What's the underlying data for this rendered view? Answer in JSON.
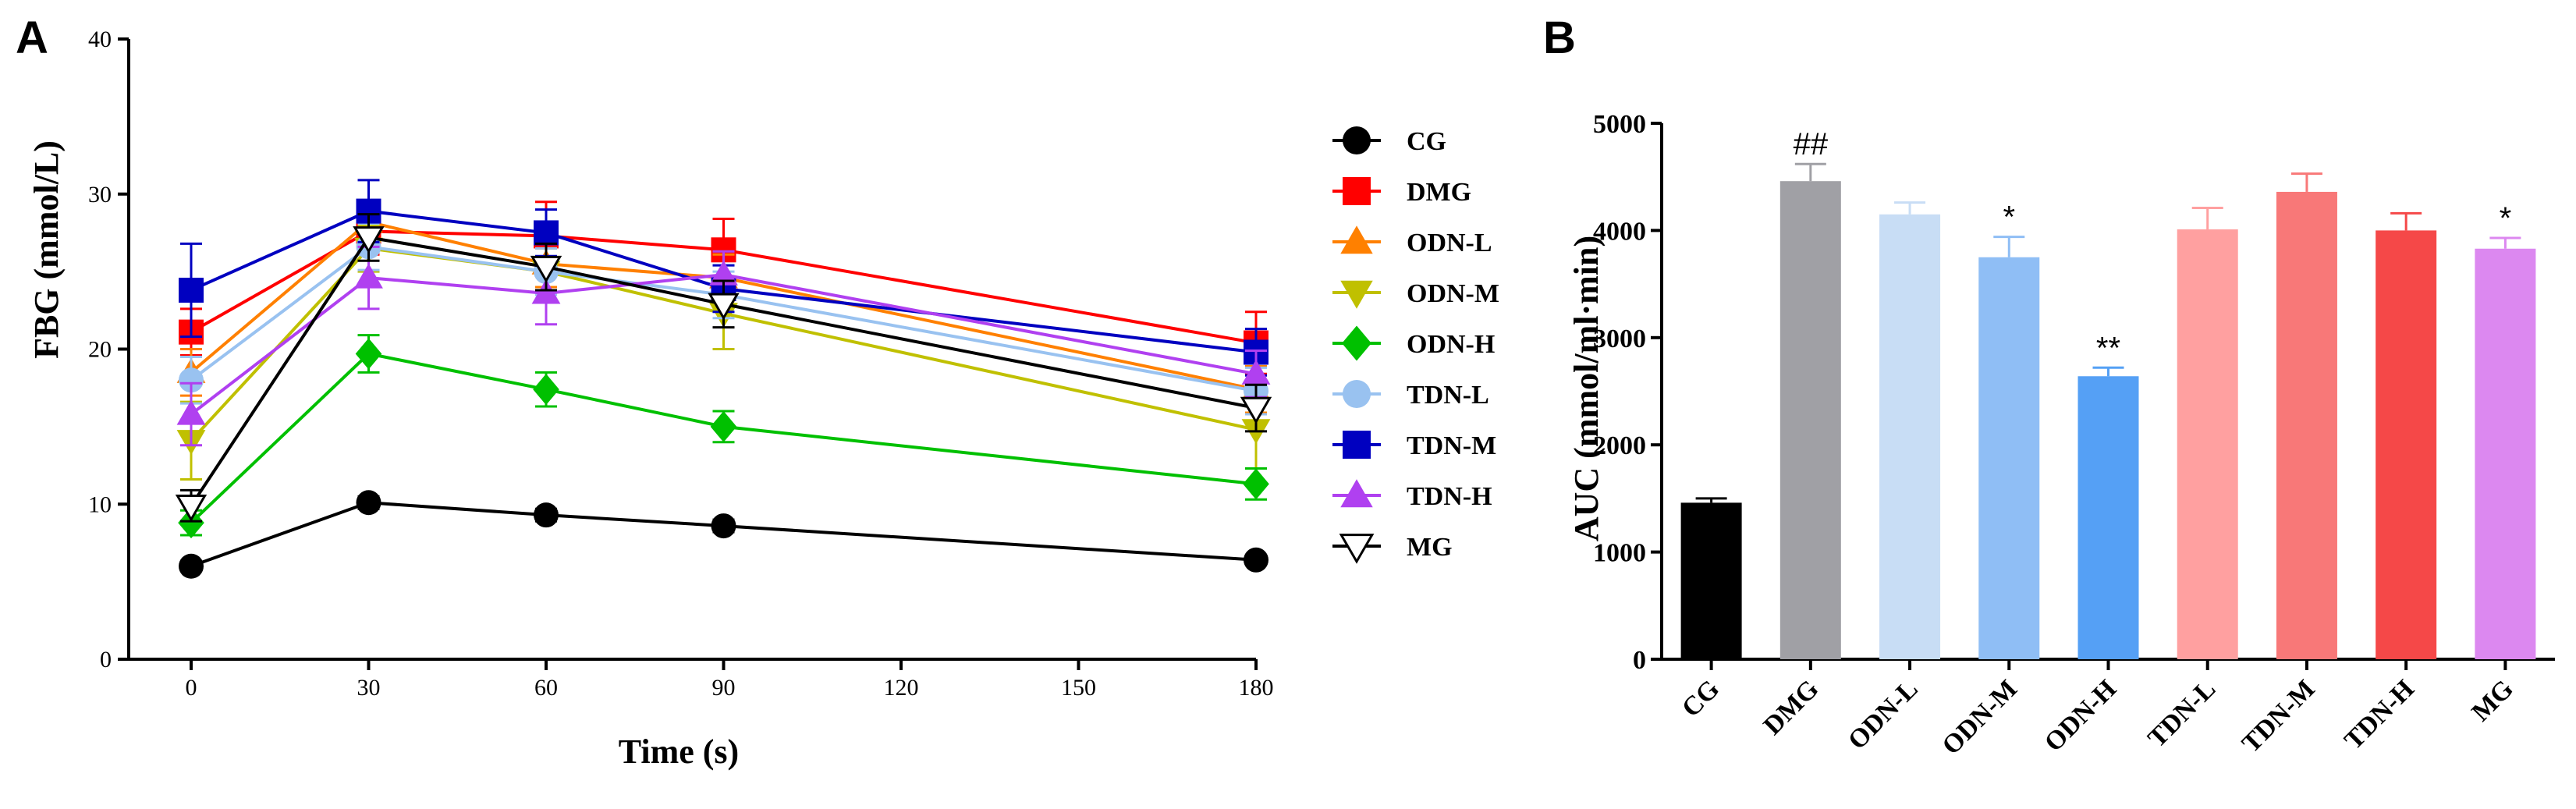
{
  "chart_data": [
    {
      "panel": "A",
      "type": "line",
      "xlabel": "Time (s)",
      "ylabel": "FBG (mmol/L)",
      "xlim": [
        0,
        180
      ],
      "ylim": [
        0,
        40
      ],
      "xticks": [
        0,
        30,
        60,
        90,
        120,
        150,
        180
      ],
      "yticks": [
        0,
        10,
        20,
        30,
        40
      ],
      "x": [
        0,
        30,
        60,
        90,
        180
      ],
      "series": [
        {
          "name": "CG",
          "color": "#000000",
          "marker": "circle",
          "values": [
            6.0,
            10.1,
            9.3,
            8.6,
            6.4
          ],
          "err": [
            0.3,
            0.4,
            0.4,
            0.4,
            0.3
          ]
        },
        {
          "name": "DMG",
          "color": "#ff0000",
          "marker": "square",
          "values": [
            21.1,
            27.6,
            27.3,
            26.4,
            20.4
          ],
          "err": [
            1.5,
            1.5,
            2.2,
            2.0,
            2.0
          ]
        },
        {
          "name": "ODN-L",
          "color": "#ff8000",
          "marker": "triangle-up",
          "values": [
            18.5,
            28.2,
            25.5,
            24.6,
            17.4
          ],
          "err": [
            1.5,
            1.2,
            1.5,
            1.5,
            1.5
          ]
        },
        {
          "name": "ODN-M",
          "color": "#c0c000",
          "marker": "triangle-down",
          "values": [
            14.1,
            26.5,
            25.0,
            22.3,
            14.8
          ],
          "err": [
            2.5,
            1.5,
            1.5,
            2.3,
            2.5
          ]
        },
        {
          "name": "ODN-H",
          "color": "#00c000",
          "marker": "diamond",
          "values": [
            8.8,
            19.7,
            17.4,
            15.0,
            11.3
          ],
          "err": [
            0.8,
            1.2,
            1.1,
            1.0,
            1.0
          ]
        },
        {
          "name": "TDN-L",
          "color": "#99c2f0",
          "marker": "circle",
          "values": [
            18.0,
            26.6,
            25.0,
            23.5,
            17.3
          ],
          "err": [
            1.5,
            1.5,
            1.5,
            1.5,
            1.5
          ]
        },
        {
          "name": "TDN-M",
          "color": "#0000c0",
          "marker": "square",
          "values": [
            23.8,
            28.9,
            27.5,
            23.9,
            19.8
          ],
          "err": [
            3.0,
            2.0,
            1.5,
            1.5,
            1.5
          ]
        },
        {
          "name": "TDN-H",
          "color": "#b040f0",
          "marker": "triangle-up",
          "values": [
            15.8,
            24.6,
            23.6,
            24.8,
            18.4
          ],
          "err": [
            2.0,
            2.0,
            2.0,
            1.5,
            1.5
          ]
        },
        {
          "name": "MG",
          "color": "#808080",
          "marker": "triangle-down-open",
          "values": [
            9.9,
            27.2,
            25.3,
            22.9,
            16.2
          ],
          "err": [
            1.0,
            1.5,
            1.5,
            1.5,
            1.5
          ]
        }
      ]
    },
    {
      "panel": "B",
      "type": "bar",
      "ylabel": "AUC (mmol/ml·min)",
      "ylim": [
        0,
        5000
      ],
      "yticks": [
        0,
        1000,
        2000,
        3000,
        4000,
        5000
      ],
      "categories": [
        "CG",
        "DMG",
        "ODN-L",
        "ODN-M",
        "ODN-H",
        "TDN-L",
        "TDN-M",
        "TDN-H",
        "MG"
      ],
      "values": [
        1460,
        4460,
        4150,
        3750,
        2640,
        4010,
        4360,
        4000,
        3830
      ],
      "errors": [
        40,
        160,
        110,
        190,
        80,
        200,
        170,
        160,
        100
      ],
      "colors": [
        "#000000",
        "#a0a0a5",
        "#c8ddf5",
        "#8fbef5",
        "#55a0f5",
        "#ffa0a0",
        "#f87878",
        "#f54848",
        "#dc88f0"
      ],
      "annotations": [
        "",
        "##",
        "",
        "*",
        "**",
        "",
        "",
        "",
        "*"
      ]
    }
  ],
  "panels": {
    "a_label": "A",
    "b_label": "B"
  }
}
